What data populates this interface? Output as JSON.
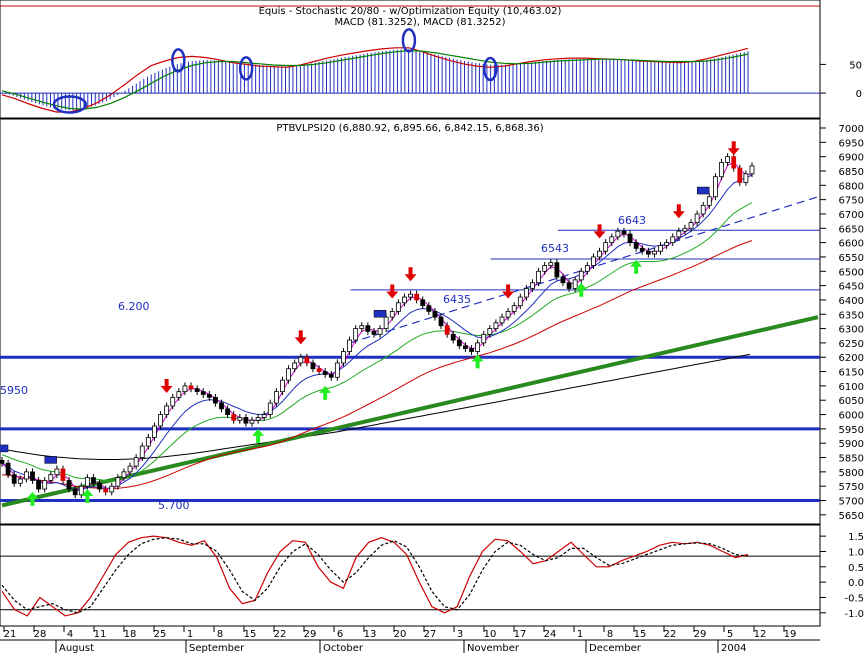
{
  "chart_data": [
    {
      "type": "line",
      "panel": "macd",
      "title": "Equis - Stochastic 20/80 - w/Optimization Equity (10,463.02)",
      "subtitle": "MACD (81.3252), MACD (81.3252)",
      "ylim": [
        -40,
        110
      ],
      "yticks": [
        0,
        50
      ],
      "series": [
        {
          "role": "macd",
          "color": "#cc0000",
          "values": [
            -3,
            -10,
            -19,
            -27,
            -33,
            -33,
            -27,
            -17,
            -3,
            14,
            32,
            48,
            56,
            62,
            64,
            62,
            58,
            53,
            50,
            47,
            46,
            45,
            49,
            55,
            61,
            66,
            70,
            74,
            77,
            79,
            79,
            72,
            64,
            57,
            51,
            47,
            45,
            47,
            51,
            55,
            58,
            60,
            61,
            61,
            60,
            59,
            58,
            56,
            55,
            54,
            53,
            55,
            60,
            66,
            72,
            78
          ]
        },
        {
          "role": "signal",
          "color": "#008000",
          "values": [
            4,
            -2,
            -9,
            -16,
            -22,
            -27,
            -28,
            -25,
            -18,
            -8,
            4,
            17,
            30,
            40,
            48,
            53,
            55,
            55,
            53,
            51,
            49,
            48,
            48,
            50,
            53,
            57,
            61,
            65,
            69,
            72,
            74,
            73,
            70,
            66,
            62,
            58,
            54,
            52,
            51,
            52,
            54,
            56,
            57,
            58,
            59,
            59,
            58,
            57,
            56,
            55,
            55,
            55,
            56,
            59,
            63,
            68
          ]
        }
      ],
      "markers": [
        {
          "index": 5,
          "value": -20,
          "shape": "ellipse"
        },
        {
          "index": 13,
          "value": 57,
          "shape": "ellipse"
        },
        {
          "index": 18,
          "value": 43,
          "shape": "ellipse"
        },
        {
          "index": 30,
          "value": 92,
          "shape": "ellipse"
        },
        {
          "index": 36,
          "value": 42,
          "shape": "ellipse"
        }
      ]
    },
    {
      "type": "candlestick",
      "panel": "price",
      "title": "PTBVLPSI20 (6,880.92, 6,895.66, 6,842.15, 6,868.36)",
      "ylim": [
        5625,
        7000
      ],
      "yticks": [
        5650,
        5700,
        5750,
        5800,
        5850,
        5900,
        5950,
        6000,
        6050,
        6100,
        6150,
        6200,
        6250,
        6300,
        6350,
        6400,
        6450,
        6500,
        6550,
        6600,
        6650,
        6700,
        6750,
        6800,
        6850,
        6900,
        6950,
        7000
      ],
      "x_count": 124,
      "close": [
        5830,
        5790,
        5760,
        5775,
        5800,
        5770,
        5740,
        5770,
        5790,
        5810,
        5770,
        5740,
        5720,
        5750,
        5780,
        5760,
        5740,
        5730,
        5750,
        5780,
        5800,
        5820,
        5850,
        5890,
        5920,
        5960,
        6000,
        6030,
        6060,
        6080,
        6100,
        6090,
        6080,
        6070,
        6060,
        6040,
        6020,
        6000,
        5980,
        5990,
        5970,
        5980,
        5990,
        6000,
        6040,
        6080,
        6120,
        6160,
        6180,
        6200,
        6180,
        6160,
        6150,
        6140,
        6130,
        6180,
        6220,
        6260,
        6300,
        6310,
        6290,
        6280,
        6300,
        6340,
        6360,
        6390,
        6410,
        6420,
        6400,
        6380,
        6360,
        6340,
        6310,
        6280,
        6260,
        6240,
        6230,
        6220,
        6250,
        6280,
        6300,
        6320,
        6340,
        6360,
        6380,
        6410,
        6440,
        6460,
        6500,
        6520,
        6530,
        6480,
        6460,
        6440,
        6470,
        6500,
        6520,
        6550,
        6570,
        6600,
        6620,
        6640,
        6630,
        6600,
        6580,
        6570,
        6560,
        6570,
        6590,
        6600,
        6620,
        6640,
        6650,
        6670,
        6700,
        6730,
        6760,
        6830,
        6880,
        6900,
        6860,
        6810,
        6840,
        6868
      ],
      "ma_fast": [
        5830,
        5818,
        5803,
        5795,
        5788,
        5778,
        5765,
        5760,
        5760,
        5763,
        5755,
        5745,
        5735,
        5737,
        5745,
        5748,
        5746,
        5742,
        5744,
        5752,
        5764,
        5778,
        5796,
        5818,
        5844,
        5872,
        5902,
        5932,
        5960,
        5986,
        6010,
        6027,
        6040,
        6048,
        6052,
        6050,
        6046,
        6038,
        6028,
        6020,
        6010,
        6004,
        6000,
        6001,
        6010,
        6026,
        6046,
        6070,
        6094,
        6114,
        6128,
        6136,
        6140,
        6142,
        6142,
        6152,
        6166,
        6184,
        6204,
        6224,
        6240,
        6252,
        6264,
        6280,
        6298,
        6318,
        6338,
        6356,
        6366,
        6370,
        6368,
        6362,
        6352,
        6340,
        6326,
        6310,
        6294,
        6280,
        6270,
        6268,
        6272,
        6280,
        6292,
        6306,
        6322,
        6342,
        6362,
        6384,
        6408,
        6432,
        6454,
        6466,
        6472,
        6474,
        6480,
        6490,
        6502,
        6516,
        6532,
        6550,
        6568,
        6586,
        6598,
        6602,
        6600,
        6596,
        6590,
        6588,
        6590,
        6594,
        6602,
        6614,
        6626,
        6640,
        6656,
        6676,
        6698,
        6726,
        6756,
        6786,
        6808,
        6818,
        6826,
        6836
      ],
      "ma_mid": [
        5860,
        5852,
        5843,
        5836,
        5830,
        5822,
        5812,
        5806,
        5802,
        5800,
        5795,
        5788,
        5780,
        5777,
        5777,
        5776,
        5773,
        5770,
        5768,
        5770,
        5775,
        5782,
        5792,
        5804,
        5820,
        5838,
        5858,
        5878,
        5898,
        5918,
        5936,
        5952,
        5964,
        5974,
        5982,
        5988,
        5990,
        5990,
        5988,
        5986,
        5982,
        5980,
        5979,
        5980,
        5985,
        5994,
        6006,
        6022,
        6038,
        6054,
        6066,
        6076,
        6084,
        6090,
        6094,
        6102,
        6112,
        6124,
        6138,
        6152,
        6164,
        6176,
        6188,
        6200,
        6214,
        6228,
        6244,
        6258,
        6270,
        6280,
        6286,
        6290,
        6292,
        6292,
        6290,
        6286,
        6282,
        6278,
        6276,
        6276,
        6278,
        6282,
        6288,
        6296,
        6306,
        6318,
        6332,
        6346,
        6362,
        6378,
        6394,
        6406,
        6414,
        6420,
        6426,
        6434,
        6444,
        6454,
        6466,
        6480,
        6494,
        6508,
        6520,
        6528,
        6532,
        6534,
        6534,
        6534,
        6536,
        6540,
        6546,
        6554,
        6564,
        6574,
        6586,
        6600,
        6616,
        6636,
        6658,
        6682,
        6702,
        6716,
        6728,
        6740
      ],
      "ma_slow": [
        5790,
        5788,
        5785,
        5782,
        5780,
        5776,
        5772,
        5768,
        5765,
        5762,
        5758,
        5754,
        5750,
        5747,
        5745,
        5744,
        5743,
        5742,
        5742,
        5743,
        5745,
        5748,
        5752,
        5757,
        5763,
        5770,
        5778,
        5786,
        5795,
        5804,
        5813,
        5822,
        5830,
        5838,
        5845,
        5852,
        5858,
        5863,
        5868,
        5872,
        5876,
        5880,
        5884,
        5888,
        5893,
        5899,
        5906,
        5914,
        5923,
        5932,
        5941,
        5950,
        5958,
        5966,
        5974,
        5983,
        5992,
        6002,
        6013,
        6024,
        6035,
        6046,
        6057,
        6068,
        6080,
        6092,
        6104,
        6116,
        6128,
        6139,
        6149,
        6158,
        6166,
        6173,
        6180,
        6186,
        6192,
        6198,
        6204,
        6210,
        6216,
        6223,
        6230,
        6238,
        6246,
        6255,
        6264,
        6274,
        6284,
        6295,
        6306,
        6316,
        6326,
        6335,
        6344,
        6353,
        6362,
        6371,
        6380,
        6390,
        6400,
        6410,
        6420,
        6430,
        6439,
        6447,
        6455,
        6463,
        6471,
        6479,
        6487,
        6496,
        6505,
        6514,
        6523,
        6533,
        6543,
        6553,
        6563,
        6573,
        6583,
        6592,
        6600,
        6607
      ],
      "long_ma": [
        5880,
        5875,
        5870,
        5866,
        5862,
        5858,
        5855,
        5852,
        5850,
        5848,
        5846,
        5845,
        5844,
        5843,
        5843,
        5843,
        5844,
        5845,
        5846,
        5848,
        5850,
        5852,
        5855,
        5858,
        5861,
        5864,
        5868,
        5872,
        5876,
        5880,
        5884,
        5888,
        5892,
        5896,
        5900,
        5904,
        5908,
        5912,
        5916,
        5920,
        5924,
        5928,
        5932,
        5936,
        5940,
        5945,
        5950,
        5955,
        5960,
        5965,
        5970,
        5975,
        5980,
        5985,
        5990,
        5995,
        6000,
        6005,
        6010,
        6015,
        6020,
        6025,
        6030,
        6035,
        6040,
        6045,
        6050,
        6055,
        6060,
        6065,
        6070,
        6075,
        6080,
        6085,
        6090,
        6095,
        6100,
        6105,
        6110,
        6115,
        6120,
        6125,
        6130,
        6135,
        6140,
        6145,
        6150,
        6155,
        6160,
        6165,
        6170,
        6175,
        6180,
        6185,
        6190,
        6195,
        6200,
        6205,
        6210
      ],
      "hlines": [
        {
          "value": 6200,
          "label": "6.200",
          "weight": "thick"
        },
        {
          "value": 5950,
          "label": "5950",
          "weight": "thick"
        },
        {
          "value": 5700,
          "label": "5.700",
          "weight": "thick"
        },
        {
          "value": 6435,
          "label": "6435",
          "weight": "thin"
        },
        {
          "value": 6543,
          "label": "6543",
          "weight": "thin"
        },
        {
          "value": 6643,
          "label": "6643",
          "weight": "thin"
        }
      ],
      "trendlines": [
        {
          "role": "green-support",
          "x1": 0,
          "y1": 5683,
          "x2": 136,
          "y2": 6340,
          "color": "#2a8a1f"
        },
        {
          "role": "blue-dashed",
          "x1": 58,
          "y1": 6250,
          "x2": 136,
          "y2": 6760,
          "color": "#1f2fbf"
        }
      ],
      "sell_arrows": [
        27,
        49,
        64,
        67,
        83,
        98,
        111,
        120
      ],
      "buy_arrows": [
        5,
        14,
        42,
        53,
        78,
        95,
        104
      ],
      "box_markers": [
        0,
        8,
        62,
        115
      ]
    },
    {
      "type": "line",
      "panel": "stochastic",
      "ylim": [
        -1.3,
        1.7
      ],
      "yticks": [
        1.5,
        1.0,
        0.5,
        0.0,
        -0.5,
        -1.0
      ],
      "ref_lines": [
        0.85,
        -0.9
      ],
      "series": [
        {
          "role": "k",
          "color": "#cc0000",
          "values": [
            -0.3,
            -0.9,
            -1.1,
            -0.5,
            -0.8,
            -1.1,
            -1.0,
            -0.5,
            0.2,
            0.9,
            1.3,
            1.45,
            1.5,
            1.45,
            1.3,
            1.2,
            1.35,
            0.8,
            -0.2,
            -0.7,
            -0.6,
            0.3,
            1.0,
            1.35,
            1.3,
            0.5,
            0.0,
            -0.2,
            0.8,
            1.3,
            1.45,
            1.3,
            0.9,
            0.0,
            -0.8,
            -1.0,
            -0.8,
            0.2,
            1.0,
            1.4,
            1.35,
            1.0,
            0.6,
            0.7,
            1.0,
            1.3,
            0.9,
            0.5,
            0.5,
            0.7,
            0.85,
            1.0,
            1.2,
            1.3,
            1.25,
            1.3,
            1.2,
            1.0,
            0.8,
            0.9
          ]
        },
        {
          "role": "d",
          "color": "#000000",
          "values": [
            -0.1,
            -0.6,
            -0.9,
            -0.8,
            -0.7,
            -0.9,
            -1.0,
            -0.8,
            -0.2,
            0.4,
            0.9,
            1.25,
            1.4,
            1.45,
            1.4,
            1.25,
            1.25,
            1.0,
            0.4,
            -0.3,
            -0.6,
            -0.2,
            0.5,
            1.0,
            1.25,
            0.9,
            0.4,
            0.0,
            0.3,
            0.8,
            1.2,
            1.35,
            1.15,
            0.5,
            -0.3,
            -0.8,
            -0.9,
            -0.4,
            0.4,
            1.0,
            1.3,
            1.2,
            0.9,
            0.7,
            0.8,
            1.1,
            1.1,
            0.8,
            0.55,
            0.6,
            0.75,
            0.9,
            1.05,
            1.2,
            1.25,
            1.28,
            1.25,
            1.1,
            0.9,
            0.85
          ]
        }
      ]
    },
    {
      "type": "axis",
      "panel": "dates",
      "tick_labels": [
        "21",
        "28",
        "4",
        "11",
        "18",
        "25",
        "1",
        "8",
        "15",
        "22",
        "29",
        "6",
        "13",
        "20",
        "27",
        "3",
        "10",
        "17",
        "24",
        "1",
        "8",
        "15",
        "22",
        "29",
        "5",
        "12",
        "19"
      ],
      "month_labels": [
        "August",
        "September",
        "October",
        "November",
        "December",
        "2004"
      ]
    }
  ]
}
